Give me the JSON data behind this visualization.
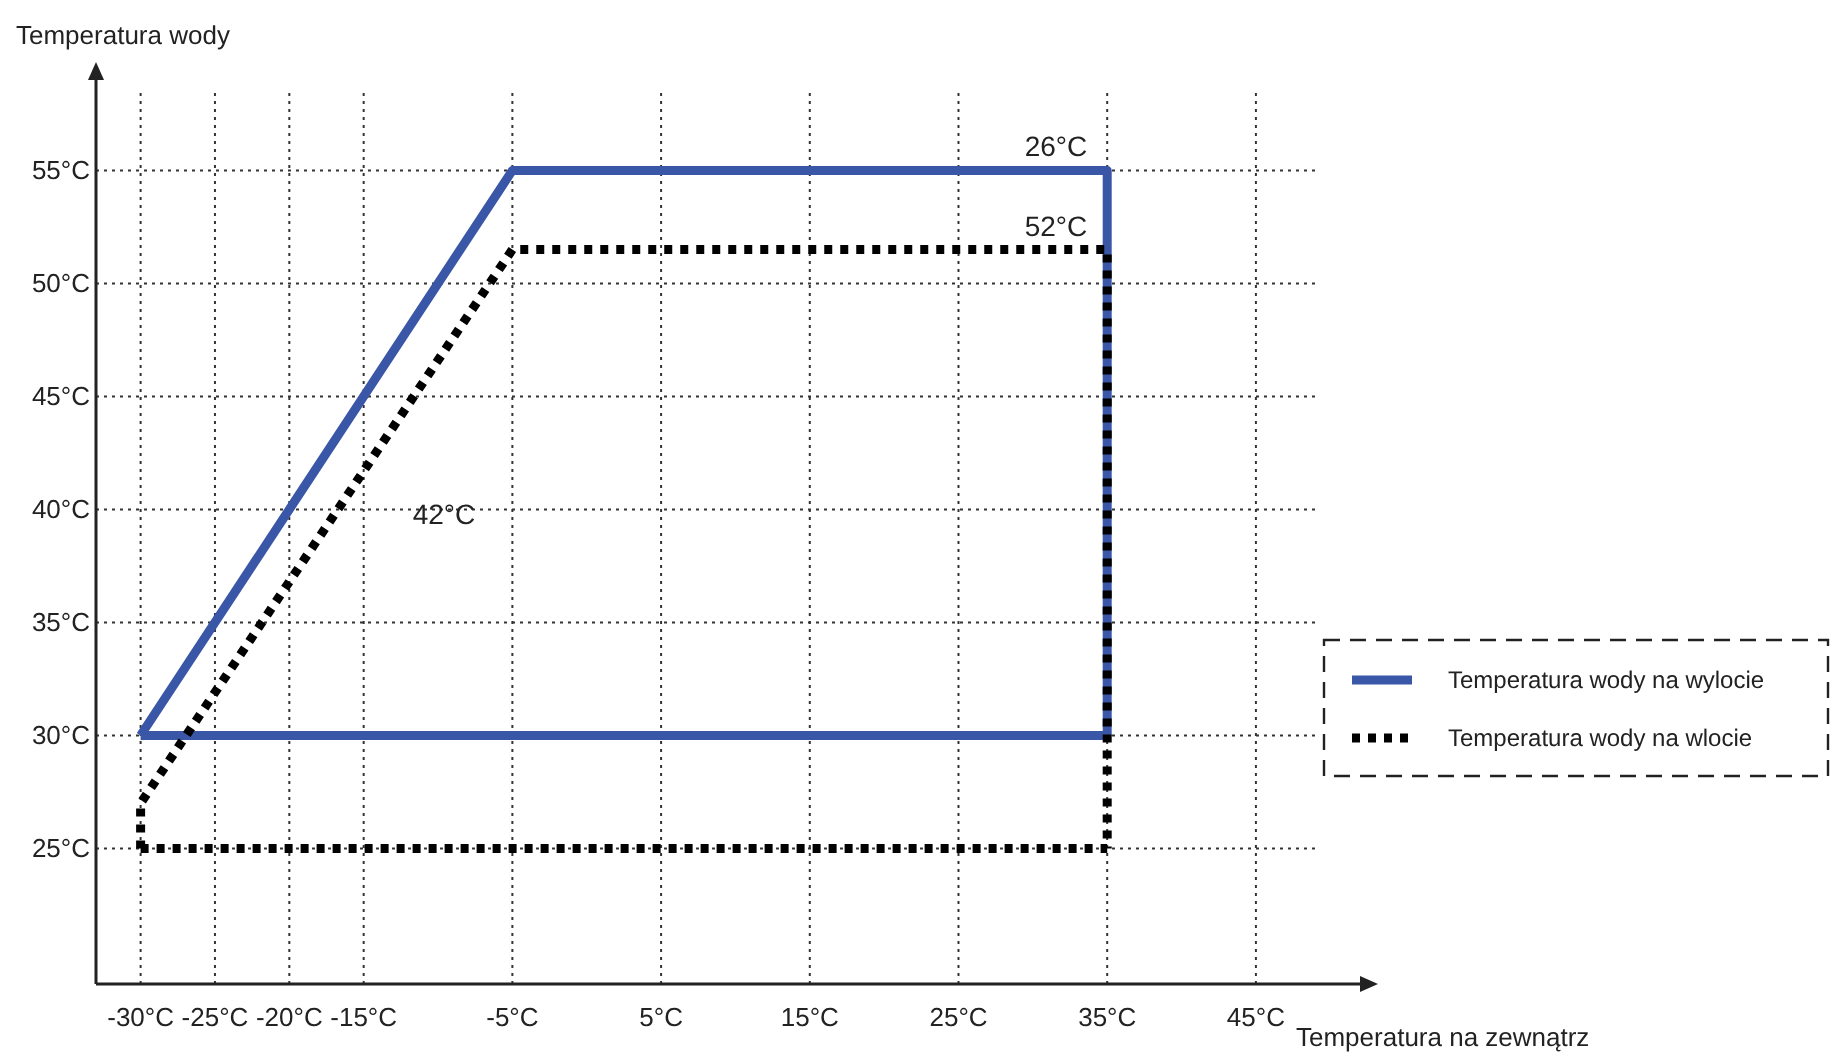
{
  "chart_data": {
    "type": "line",
    "xlabel": "Temperatura na zewnątrz",
    "ylabel": "Temperatura wody",
    "xlim": [
      -33,
      52
    ],
    "ylim": [
      19,
      59
    ],
    "xticks": [
      {
        "value": -30,
        "label": "-30°C"
      },
      {
        "value": -25,
        "label": "-25°C"
      },
      {
        "value": -20,
        "label": "-20°C"
      },
      {
        "value": -15,
        "label": "-15°C"
      },
      {
        "value": -5,
        "label": "-5°C"
      },
      {
        "value": 5,
        "label": "5°C"
      },
      {
        "value": 15,
        "label": "15°C"
      },
      {
        "value": 25,
        "label": "25°C"
      },
      {
        "value": 35,
        "label": "35°C"
      },
      {
        "value": 45,
        "label": "45°C"
      }
    ],
    "yticks": [
      {
        "value": 25,
        "label": "25°C"
      },
      {
        "value": 30,
        "label": "30°C"
      },
      {
        "value": 35,
        "label": "35°C"
      },
      {
        "value": 40,
        "label": "40°C"
      },
      {
        "value": 45,
        "label": "45°C"
      },
      {
        "value": 50,
        "label": "50°C"
      },
      {
        "value": 55,
        "label": "55°C"
      }
    ],
    "grid": true,
    "legend": "right",
    "series": [
      {
        "name": "Temperatura wody na wylocie",
        "color": "#3a56a6",
        "line_style": "solid",
        "x": [
          -30,
          -5,
          35,
          35
        ],
        "values": [
          30,
          55,
          55,
          30
        ]
      },
      {
        "color": "#3a56a6",
        "line_style": "solid",
        "x": [
          -30,
          35
        ],
        "values": [
          30,
          30
        ]
      },
      {
        "name": "Temperatura wody na wlocie",
        "color": "#000000",
        "line_style": "dotted",
        "x": [
          -30,
          -30,
          -5,
          35,
          35
        ],
        "values": [
          25,
          27,
          51.5,
          51.5,
          25
        ]
      },
      {
        "color": "#000000",
        "line_style": "dotted",
        "x": [
          -30,
          35
        ],
        "values": [
          25,
          25
        ]
      }
    ],
    "annotations": [
      "26°C",
      "52°C",
      "42°C"
    ]
  }
}
